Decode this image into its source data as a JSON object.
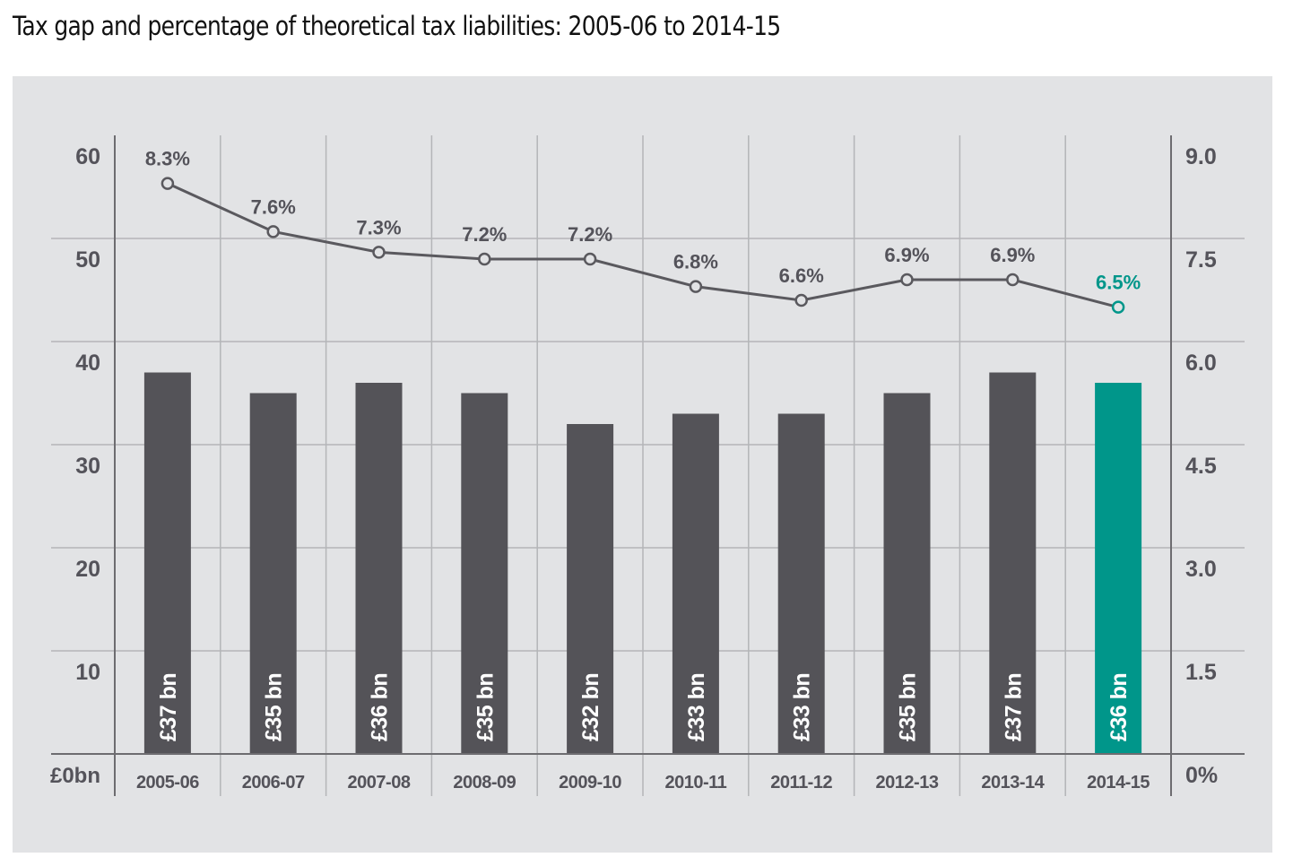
{
  "title": "Tax gap and percentage of theoretical tax liabilities: 2005-06 to 2014-15",
  "colors": {
    "bar": "#545358",
    "highlight": "#00968a",
    "line": "#5a595e",
    "grid": "#b4b5b8",
    "axis": "#6d6c70",
    "text": "#54535a",
    "panel": "#e2e3e5"
  },
  "chart_data": {
    "type": "bar",
    "title": "Tax gap and percentage of theoretical tax liabilities: 2005-06 to 2014-15",
    "xlabel": "",
    "ylabel": "",
    "categories": [
      "2005-06",
      "2006-07",
      "2007-08",
      "2008-09",
      "2009-10",
      "2010-11",
      "2011-12",
      "2012-13",
      "2013-14",
      "2014-15"
    ],
    "series": [
      {
        "name": "Tax gap (£bn)",
        "type": "bar",
        "axis": "left",
        "values": [
          37,
          35,
          36,
          35,
          32,
          33,
          33,
          35,
          37,
          36
        ],
        "labels": [
          "£37 bn",
          "£35 bn",
          "£36 bn",
          "£35 bn",
          "£32 bn",
          "£33 bn",
          "£33 bn",
          "£35 bn",
          "£37 bn",
          "£36 bn"
        ],
        "highlight_index": 9
      },
      {
        "name": "Percentage of theoretical tax liabilities",
        "type": "line",
        "axis": "right",
        "values": [
          8.3,
          7.6,
          7.3,
          7.2,
          7.2,
          6.8,
          6.6,
          6.9,
          6.9,
          6.5
        ],
        "labels": [
          "8.3%",
          "7.6%",
          "7.3%",
          "7.2%",
          "7.2%",
          "6.8%",
          "6.6%",
          "6.9%",
          "6.9%",
          "6.5%"
        ],
        "highlight_index": 9
      }
    ],
    "left_axis": {
      "ylim": [
        0,
        60
      ],
      "ticks": [
        0,
        10,
        20,
        30,
        40,
        50,
        60
      ],
      "tick_labels": [
        "£0bn",
        "10",
        "20",
        "30",
        "40",
        "50",
        "60"
      ]
    },
    "right_axis": {
      "ylim": [
        0,
        9.0
      ],
      "ticks": [
        0,
        1.5,
        3.0,
        4.5,
        6.0,
        7.5,
        9.0
      ],
      "tick_labels": [
        "0%",
        "1.5",
        "3.0",
        "4.5",
        "6.0",
        "7.5",
        "9.0"
      ]
    },
    "grid": true,
    "legend": "none"
  }
}
